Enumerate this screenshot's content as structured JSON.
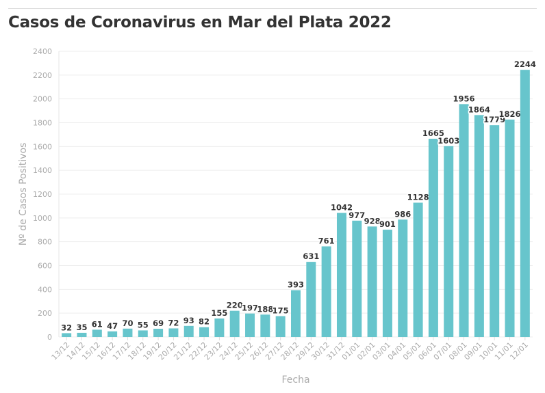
{
  "chart_data": {
    "type": "bar",
    "title": "Casos de Coronavirus en Mar del Plata 2022",
    "xlabel": "Fecha",
    "ylabel": "Nº de Casos Positivos",
    "ylim": [
      0,
      2400
    ],
    "yticks": [
      0,
      200,
      400,
      600,
      800,
      1000,
      1200,
      1400,
      1600,
      1800,
      2000,
      2200,
      2400
    ],
    "grid": true,
    "bar_color": "#67c5cc",
    "categories": [
      "13/12",
      "14/12",
      "15/12",
      "16/12",
      "17/12",
      "18/12",
      "19/12",
      "20/12",
      "21/12",
      "22/12",
      "23/12",
      "24/12",
      "25/12",
      "26/12",
      "27/12",
      "28/12",
      "29/12",
      "30/12",
      "31/12",
      "01/01",
      "02/01",
      "03/01",
      "04/01",
      "05/01",
      "06/01",
      "07/01",
      "08/01",
      "09/01",
      "10/01",
      "11/01",
      "12/01"
    ],
    "values": [
      32,
      35,
      61,
      47,
      70,
      55,
      69,
      72,
      93,
      82,
      155,
      220,
      197,
      188,
      175,
      393,
      631,
      761,
      1042,
      977,
      928,
      901,
      986,
      1128,
      1665,
      1603,
      1956,
      1864,
      1779,
      1826,
      2244
    ]
  }
}
